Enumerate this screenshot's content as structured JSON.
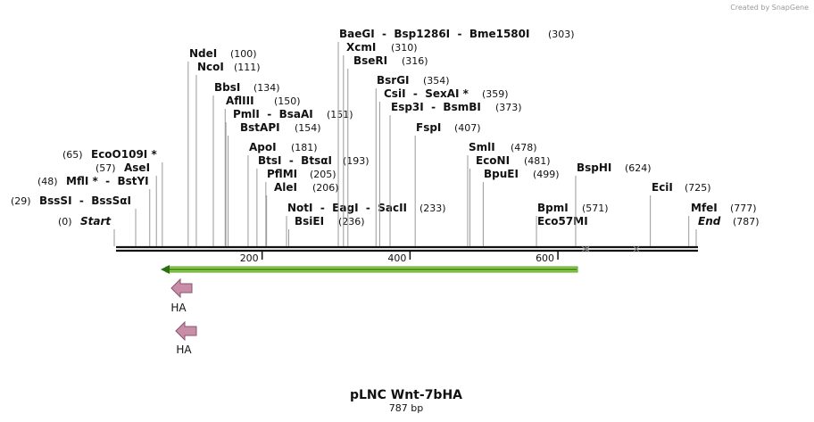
{
  "watermark": "Created by SnapGene",
  "title": "pLNC Wnt-7bHA",
  "subtitle": "787 bp",
  "length": 787,
  "ruler_ticks": [
    200,
    400,
    600
  ],
  "features": [
    {
      "label": "HA"
    },
    {
      "label": "HA"
    }
  ],
  "sites": [
    {
      "name": "Start",
      "position": 0,
      "position_label": "(0)",
      "italic": true
    },
    {
      "name": "BssSI  -  BssSαI",
      "position": 29,
      "position_label": "(29)"
    },
    {
      "name": "MflI *  -  BstYI",
      "position": 48,
      "position_label": "(48)"
    },
    {
      "name": "AseI",
      "position": 57,
      "position_label": "(57)"
    },
    {
      "name": "EcoO109I *",
      "position": 65,
      "position_label": "(65)"
    },
    {
      "name": "NdeI",
      "position": 100,
      "position_label": "(100)"
    },
    {
      "name": "NcoI",
      "position": 111,
      "position_label": "(111)"
    },
    {
      "name": "BbsI",
      "position": 134,
      "position_label": "(134)"
    },
    {
      "name": "AflIII",
      "position": 150,
      "position_label": "(150)"
    },
    {
      "name": "PmlI  -  BsaAI",
      "position": 151,
      "position_label": "(151)"
    },
    {
      "name": "BstAPI",
      "position": 154,
      "position_label": "(154)"
    },
    {
      "name": "ApoI",
      "position": 181,
      "position_label": "(181)"
    },
    {
      "name": "BtsI  -  BtsαI",
      "position": 193,
      "position_label": "(193)"
    },
    {
      "name": "PflMI",
      "position": 205,
      "position_label": "(205)"
    },
    {
      "name": "AleI",
      "position": 206,
      "position_label": "(206)"
    },
    {
      "name": "NotI  -  EagI  -  SacII",
      "position": 233,
      "position_label": "(233)"
    },
    {
      "name": "BsiEI",
      "position": 236,
      "position_label": "(236)"
    },
    {
      "name": "BaeGI  -  Bsp1286I  -  Bme1580I",
      "position": 303,
      "position_label": "(303)"
    },
    {
      "name": "XcmI",
      "position": 310,
      "position_label": "(310)"
    },
    {
      "name": "BseRI",
      "position": 316,
      "position_label": "(316)"
    },
    {
      "name": "BsrGI",
      "position": 354,
      "position_label": "(354)"
    },
    {
      "name": "CsiI  -  SexAI *",
      "position": 359,
      "position_label": "(359)"
    },
    {
      "name": "Esp3I  -  BsmBI",
      "position": 373,
      "position_label": "(373)"
    },
    {
      "name": "FspI",
      "position": 407,
      "position_label": "(407)"
    },
    {
      "name": "SmlI",
      "position": 478,
      "position_label": "(478)"
    },
    {
      "name": "EcoNI",
      "position": 481,
      "position_label": "(481)"
    },
    {
      "name": "BpuEI",
      "position": 499,
      "position_label": "(499)"
    },
    {
      "name": "BpmI",
      "position": 571,
      "position_label": "(571)"
    },
    {
      "name": "Eco57MI"
    },
    {
      "name": "BspHI",
      "position": 624,
      "position_label": "(624)"
    },
    {
      "name": "EciI",
      "position": 725,
      "position_label": "(725)"
    },
    {
      "name": "MfeI",
      "position": 777,
      "position_label": "(777)"
    },
    {
      "name": "End",
      "position": 787,
      "position_label": "(787)",
      "italic": true
    }
  ]
}
